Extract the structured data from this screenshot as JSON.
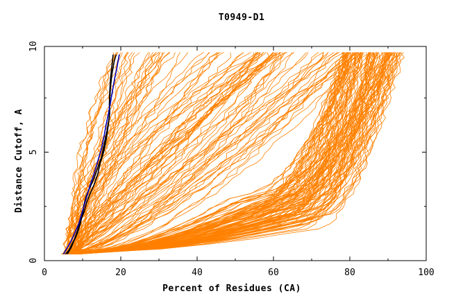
{
  "chart_data": {
    "type": "line",
    "title": "T0949-D1",
    "xlabel": "Percent of Residues (CA)",
    "ylabel": "Distance Cutoff, A",
    "xlim": [
      0,
      100
    ],
    "ylim": [
      0,
      10
    ],
    "x_ticks": [
      "0",
      "20",
      "40",
      "60",
      "80",
      "100"
    ],
    "y_ticks": [
      "0",
      "5",
      "10"
    ],
    "grid": false,
    "legend": "none",
    "colors": {
      "background": "#ffffff",
      "axes": "#000000",
      "models": "#ff8000",
      "highlight_a": "#000000",
      "highlight_b": "#0000c0"
    },
    "series_summary": "about 200 orange model curves (percent of residues vs distance cutoff), plus two black and one blue highlighted curves",
    "series": [
      {
        "color": "#000000",
        "points": [
          [
            5.5,
            0.3
          ],
          [
            6.5,
            0.5
          ],
          [
            7.3,
            0.8
          ],
          [
            8.0,
            1.0
          ],
          [
            8.7,
            1.3
          ],
          [
            9.4,
            1.7
          ],
          [
            9.9,
            2.1
          ],
          [
            10.4,
            2.6
          ],
          [
            11.0,
            3.0
          ],
          [
            12.0,
            3.4
          ],
          [
            13.0,
            3.8
          ],
          [
            14.0,
            4.3
          ],
          [
            15.0,
            4.8
          ],
          [
            15.8,
            5.5
          ],
          [
            16.4,
            6.0
          ],
          [
            17.0,
            6.6
          ],
          [
            17.0,
            7.2
          ],
          [
            17.1,
            7.8
          ],
          [
            17.3,
            8.4
          ],
          [
            17.7,
            9.0
          ],
          [
            18.0,
            9.5
          ]
        ]
      },
      {
        "color": "#000000",
        "points": [
          [
            6.0,
            0.3
          ],
          [
            7.0,
            0.6
          ],
          [
            7.9,
            1.0
          ],
          [
            8.7,
            1.4
          ],
          [
            9.3,
            1.8
          ],
          [
            10.3,
            2.2
          ],
          [
            11.1,
            2.7
          ],
          [
            12.0,
            3.1
          ],
          [
            13.0,
            3.5
          ],
          [
            14.0,
            4.0
          ],
          [
            14.6,
            4.5
          ],
          [
            15.5,
            5.0
          ],
          [
            16.2,
            5.6
          ],
          [
            16.7,
            6.2
          ],
          [
            17.1,
            6.8
          ],
          [
            17.1,
            7.4
          ],
          [
            17.3,
            8.0
          ],
          [
            17.7,
            8.6
          ],
          [
            18.3,
            9.2
          ],
          [
            18.8,
            9.5
          ]
        ]
      },
      {
        "color": "#0000c0",
        "points": [
          [
            5.0,
            0.3
          ],
          [
            6.0,
            0.6
          ],
          [
            7.0,
            0.9
          ],
          [
            8.0,
            1.3
          ],
          [
            9.0,
            1.7
          ],
          [
            10.0,
            2.3
          ],
          [
            11.0,
            2.9
          ],
          [
            12.0,
            3.5
          ],
          [
            13.0,
            4.0
          ],
          [
            14.0,
            4.6
          ],
          [
            15.0,
            5.2
          ],
          [
            15.7,
            5.8
          ],
          [
            16.2,
            6.3
          ],
          [
            16.8,
            6.8
          ],
          [
            17.3,
            7.3
          ],
          [
            17.8,
            7.8
          ],
          [
            18.4,
            8.4
          ],
          [
            19.0,
            8.9
          ],
          [
            19.6,
            9.5
          ]
        ]
      }
    ]
  }
}
